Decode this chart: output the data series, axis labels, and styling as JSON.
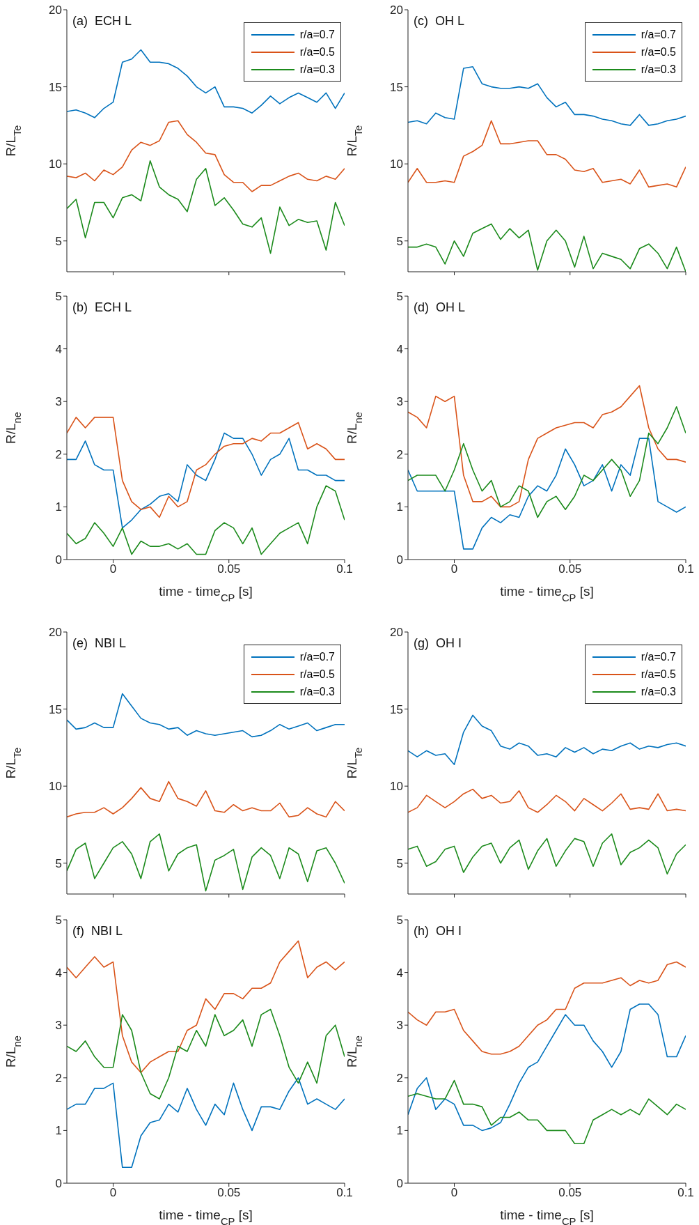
{
  "chart_data": [
    {
      "type": "line",
      "annotations": [
        "(a)  ECH L"
      ],
      "ylabel": "R/L$_{Te}$",
      "xlim": [
        -0.02,
        0.1
      ],
      "xticks": [
        0,
        0.05,
        0.1
      ],
      "ylim": [
        3,
        20
      ],
      "yticks": [
        5,
        10,
        15,
        20
      ],
      "tick_labels": "y",
      "legend": "top right",
      "x": [
        -0.02,
        -0.016,
        -0.012,
        -0.008,
        -0.004,
        0,
        0.004,
        0.008,
        0.012,
        0.016,
        0.02,
        0.024,
        0.028,
        0.032,
        0.036,
        0.04,
        0.044,
        0.048,
        0.052,
        0.056,
        0.06,
        0.064,
        0.068,
        0.072,
        0.076,
        0.08,
        0.084,
        0.088,
        0.092,
        0.096,
        0.1
      ],
      "series": [
        {
          "name": "r/a=0.7",
          "color": "#0072bd",
          "values": [
            13.4,
            13.5,
            13.3,
            13.0,
            13.6,
            14.0,
            16.6,
            16.8,
            17.4,
            16.6,
            16.6,
            16.5,
            16.2,
            15.7,
            15.0,
            14.6,
            15.0,
            13.7,
            13.7,
            13.6,
            13.3,
            13.8,
            14.4,
            13.9,
            14.3,
            14.6,
            14.3,
            14.0,
            14.6,
            13.6,
            14.6
          ]
        },
        {
          "name": "r/a=0.5",
          "color": "#d95319",
          "values": [
            9.2,
            9.1,
            9.4,
            8.9,
            9.6,
            9.3,
            9.8,
            10.9,
            11.4,
            11.2,
            11.5,
            12.7,
            12.8,
            11.9,
            11.4,
            10.7,
            10.6,
            9.3,
            8.8,
            8.8,
            8.2,
            8.6,
            8.6,
            8.9,
            9.2,
            9.4,
            9.0,
            8.9,
            9.2,
            9.0,
            9.7
          ]
        },
        {
          "name": "r/a=0.3",
          "color": "#1b8a1b",
          "values": [
            7.1,
            7.7,
            5.2,
            7.5,
            7.5,
            6.5,
            7.8,
            8.0,
            7.6,
            10.2,
            8.5,
            8.0,
            7.7,
            6.9,
            9.0,
            9.7,
            7.3,
            7.8,
            7.0,
            6.1,
            5.9,
            6.5,
            4.2,
            7.2,
            6.0,
            6.4,
            6.2,
            6.3,
            4.4,
            7.5,
            6.0
          ]
        }
      ]
    },
    {
      "type": "line",
      "annotations": [
        "(c)  OH L"
      ],
      "ylabel": "R/L$_{Te}$",
      "xlim": [
        -0.02,
        0.1
      ],
      "xticks": [
        0,
        0.05,
        0.1
      ],
      "ylim": [
        3,
        20
      ],
      "yticks": [
        5,
        10,
        15,
        20
      ],
      "tick_labels": "y",
      "legend": "top right",
      "x": [
        -0.02,
        -0.016,
        -0.012,
        -0.008,
        -0.004,
        0,
        0.004,
        0.008,
        0.012,
        0.016,
        0.02,
        0.024,
        0.028,
        0.032,
        0.036,
        0.04,
        0.044,
        0.048,
        0.052,
        0.056,
        0.06,
        0.064,
        0.068,
        0.072,
        0.076,
        0.08,
        0.084,
        0.088,
        0.092,
        0.096,
        0.1
      ],
      "series": [
        {
          "name": "r/a=0.7",
          "color": "#0072bd",
          "values": [
            12.7,
            12.8,
            12.6,
            13.3,
            13.0,
            12.9,
            16.2,
            16.3,
            15.2,
            15.0,
            14.9,
            14.9,
            15.0,
            14.9,
            15.2,
            14.3,
            13.7,
            14.0,
            13.2,
            13.2,
            13.1,
            12.9,
            12.8,
            12.6,
            12.5,
            13.2,
            12.5,
            12.6,
            12.8,
            12.9,
            13.1
          ]
        },
        {
          "name": "r/a=0.5",
          "color": "#d95319",
          "values": [
            8.8,
            9.7,
            8.8,
            8.8,
            8.9,
            8.8,
            10.5,
            10.8,
            11.2,
            12.8,
            11.3,
            11.3,
            11.4,
            11.5,
            11.5,
            10.6,
            10.6,
            10.3,
            9.6,
            9.5,
            9.7,
            8.8,
            8.9,
            9.0,
            8.7,
            9.6,
            8.5,
            8.6,
            8.7,
            8.5,
            9.8
          ]
        },
        {
          "name": "r/a=0.3",
          "color": "#1b8a1b",
          "values": [
            4.6,
            4.6,
            4.8,
            4.6,
            3.5,
            5.0,
            4.0,
            5.5,
            5.8,
            6.1,
            5.1,
            5.8,
            5.2,
            5.7,
            3.1,
            5.0,
            5.7,
            5.0,
            3.3,
            5.3,
            3.2,
            4.2,
            4.0,
            3.8,
            3.2,
            4.5,
            4.8,
            4.2,
            3.2,
            4.6,
            3.0
          ]
        }
      ]
    },
    {
      "type": "line",
      "annotations": [
        "(b)  ECH L"
      ],
      "ylabel": "R/L$_{ne}$",
      "xlabel": "time - time$_{CP}$ [s]",
      "xlim": [
        -0.02,
        0.1
      ],
      "xticks": [
        0,
        0.05,
        0.1
      ],
      "ylim": [
        0,
        5
      ],
      "yticks": [
        0,
        1,
        2,
        3,
        4,
        5
      ],
      "x": [
        -0.02,
        -0.016,
        -0.012,
        -0.008,
        -0.004,
        0,
        0.004,
        0.008,
        0.012,
        0.016,
        0.02,
        0.024,
        0.028,
        0.032,
        0.036,
        0.04,
        0.044,
        0.048,
        0.052,
        0.056,
        0.06,
        0.064,
        0.068,
        0.072,
        0.076,
        0.08,
        0.084,
        0.088,
        0.092,
        0.096,
        0.1
      ],
      "series": [
        {
          "color": "#0072bd",
          "values": [
            1.9,
            1.9,
            2.25,
            1.8,
            1.7,
            1.7,
            0.6,
            0.75,
            0.95,
            1.05,
            1.2,
            1.25,
            1.1,
            1.8,
            1.6,
            1.5,
            1.9,
            2.4,
            2.3,
            2.3,
            2.0,
            1.6,
            1.9,
            2.0,
            2.3,
            1.7,
            1.7,
            1.6,
            1.6,
            1.5,
            1.5
          ]
        },
        {
          "color": "#d95319",
          "values": [
            2.4,
            2.7,
            2.5,
            2.7,
            2.7,
            2.7,
            1.5,
            1.1,
            0.95,
            1.0,
            0.8,
            1.2,
            1.0,
            1.1,
            1.7,
            1.8,
            2.0,
            2.15,
            2.2,
            2.2,
            2.3,
            2.25,
            2.4,
            2.4,
            2.5,
            2.6,
            2.1,
            2.2,
            2.1,
            1.9,
            1.9
          ]
        },
        {
          "color": "#1b8a1b",
          "values": [
            0.5,
            0.3,
            0.4,
            0.7,
            0.5,
            0.25,
            0.6,
            0.1,
            0.35,
            0.25,
            0.25,
            0.3,
            0.2,
            0.3,
            0.1,
            0.1,
            0.55,
            0.7,
            0.6,
            0.3,
            0.6,
            0.1,
            0.3,
            0.5,
            0.6,
            0.7,
            0.3,
            1.0,
            1.4,
            1.3,
            0.75
          ]
        }
      ]
    },
    {
      "type": "line",
      "annotations": [
        "(d)  OH L"
      ],
      "ylabel": "R/L$_{ne}$",
      "xlabel": "time - time$_{CP}$ [s]",
      "xlim": [
        -0.02,
        0.1
      ],
      "xticks": [
        0,
        0.05,
        0.1
      ],
      "ylim": [
        0,
        5
      ],
      "yticks": [
        0,
        1,
        2,
        3,
        4,
        5
      ],
      "x": [
        -0.02,
        -0.016,
        -0.012,
        -0.008,
        -0.004,
        0,
        0.004,
        0.008,
        0.012,
        0.016,
        0.02,
        0.024,
        0.028,
        0.032,
        0.036,
        0.04,
        0.044,
        0.048,
        0.052,
        0.056,
        0.06,
        0.064,
        0.068,
        0.072,
        0.076,
        0.08,
        0.084,
        0.088,
        0.092,
        0.096,
        0.1
      ],
      "series": [
        {
          "color": "#0072bd",
          "values": [
            1.7,
            1.3,
            1.3,
            1.3,
            1.3,
            1.3,
            0.2,
            0.2,
            0.6,
            0.8,
            0.7,
            0.85,
            0.8,
            1.2,
            1.4,
            1.3,
            1.6,
            2.1,
            1.8,
            1.4,
            1.5,
            1.8,
            1.3,
            1.8,
            1.6,
            2.3,
            2.3,
            1.1,
            1.0,
            0.9,
            1.0
          ]
        },
        {
          "color": "#d95319",
          "values": [
            2.8,
            2.7,
            2.5,
            3.1,
            3.0,
            3.1,
            1.6,
            1.1,
            1.1,
            1.2,
            1.0,
            1.0,
            1.1,
            1.9,
            2.3,
            2.4,
            2.5,
            2.55,
            2.6,
            2.6,
            2.5,
            2.75,
            2.8,
            2.9,
            3.1,
            3.3,
            2.5,
            2.1,
            1.9,
            1.9,
            1.85
          ]
        },
        {
          "color": "#1b8a1b",
          "values": [
            1.5,
            1.6,
            1.6,
            1.6,
            1.3,
            1.7,
            2.2,
            1.7,
            1.3,
            1.5,
            1.0,
            1.1,
            1.4,
            1.3,
            0.8,
            1.1,
            1.2,
            0.95,
            1.2,
            1.6,
            1.5,
            1.7,
            1.9,
            1.7,
            1.2,
            1.5,
            2.4,
            2.2,
            2.5,
            2.9,
            2.4
          ]
        }
      ]
    },
    {
      "type": "line",
      "annotations": [
        "(e)  NBI L"
      ],
      "ylabel": "R/L$_{Te}$",
      "xlim": [
        -0.02,
        0.1
      ],
      "xticks": [
        0,
        0.05,
        0.1
      ],
      "ylim": [
        3,
        20
      ],
      "yticks": [
        5,
        10,
        15,
        20
      ],
      "tick_labels": "y",
      "legend": "top right",
      "x": [
        -0.02,
        -0.016,
        -0.012,
        -0.008,
        -0.004,
        0,
        0.004,
        0.008,
        0.012,
        0.016,
        0.02,
        0.024,
        0.028,
        0.032,
        0.036,
        0.04,
        0.044,
        0.048,
        0.052,
        0.056,
        0.06,
        0.064,
        0.068,
        0.072,
        0.076,
        0.08,
        0.084,
        0.088,
        0.092,
        0.096,
        0.1
      ],
      "series": [
        {
          "name": "r/a=0.7",
          "color": "#0072bd",
          "values": [
            14.3,
            13.7,
            13.8,
            14.1,
            13.8,
            13.8,
            16.0,
            15.2,
            14.4,
            14.1,
            14.0,
            13.7,
            13.8,
            13.3,
            13.6,
            13.4,
            13.3,
            13.4,
            13.5,
            13.6,
            13.2,
            13.3,
            13.6,
            14.0,
            13.7,
            13.9,
            14.1,
            13.6,
            13.8,
            14.0,
            14.0
          ]
        },
        {
          "name": "r/a=0.5",
          "color": "#d95319",
          "values": [
            8.0,
            8.2,
            8.3,
            8.3,
            8.6,
            8.2,
            8.6,
            9.2,
            9.9,
            9.2,
            9.0,
            10.3,
            9.2,
            9.0,
            8.7,
            9.7,
            8.4,
            8.3,
            8.8,
            8.4,
            8.6,
            8.4,
            8.4,
            8.9,
            8.0,
            8.1,
            8.6,
            8.2,
            8.0,
            9.0,
            8.4
          ]
        },
        {
          "name": "r/a=0.3",
          "color": "#1b8a1b",
          "values": [
            4.5,
            5.9,
            6.3,
            4.0,
            5.0,
            6.0,
            6.4,
            5.6,
            4.0,
            6.4,
            6.9,
            4.5,
            5.6,
            6.0,
            6.2,
            3.2,
            5.2,
            5.5,
            5.9,
            3.3,
            5.4,
            6.0,
            5.5,
            4.0,
            6.0,
            5.6,
            3.8,
            5.8,
            6.0,
            5.0,
            3.7
          ]
        }
      ]
    },
    {
      "type": "line",
      "annotations": [
        "(g)  OH I"
      ],
      "ylabel": "R/L$_{Te}$",
      "xlim": [
        -0.02,
        0.1
      ],
      "xticks": [
        0,
        0.05,
        0.1
      ],
      "ylim": [
        3,
        20
      ],
      "yticks": [
        5,
        10,
        15,
        20
      ],
      "tick_labels": "y",
      "legend": "top right",
      "x": [
        -0.02,
        -0.016,
        -0.012,
        -0.008,
        -0.004,
        0,
        0.004,
        0.008,
        0.012,
        0.016,
        0.02,
        0.024,
        0.028,
        0.032,
        0.036,
        0.04,
        0.044,
        0.048,
        0.052,
        0.056,
        0.06,
        0.064,
        0.068,
        0.072,
        0.076,
        0.08,
        0.084,
        0.088,
        0.092,
        0.096,
        0.1
      ],
      "series": [
        {
          "name": "r/a=0.7",
          "color": "#0072bd",
          "values": [
            12.3,
            11.9,
            12.3,
            12.0,
            12.1,
            11.4,
            13.5,
            14.6,
            13.9,
            13.6,
            12.6,
            12.4,
            12.8,
            12.6,
            12.0,
            12.1,
            11.9,
            12.5,
            12.2,
            12.5,
            12.1,
            12.4,
            12.3,
            12.6,
            12.8,
            12.4,
            12.6,
            12.5,
            12.7,
            12.8,
            12.6
          ]
        },
        {
          "name": "r/a=0.5",
          "color": "#d95319",
          "values": [
            8.3,
            8.6,
            9.4,
            9.0,
            8.6,
            9.0,
            9.5,
            9.8,
            9.2,
            9.4,
            8.9,
            9.0,
            9.7,
            8.6,
            8.3,
            8.8,
            9.4,
            9.0,
            8.4,
            9.2,
            8.8,
            8.4,
            8.9,
            9.5,
            8.5,
            8.6,
            8.5,
            9.5,
            8.4,
            8.5,
            8.4
          ]
        },
        {
          "name": "r/a=0.3",
          "color": "#1b8a1b",
          "values": [
            5.9,
            6.1,
            4.8,
            5.1,
            5.9,
            6.1,
            4.4,
            5.4,
            6.1,
            6.3,
            5.0,
            6.0,
            6.5,
            4.6,
            5.8,
            6.6,
            4.8,
            5.8,
            6.6,
            6.4,
            4.8,
            6.3,
            6.9,
            4.9,
            5.7,
            6.0,
            6.5,
            6.0,
            4.3,
            5.6,
            6.2
          ]
        }
      ]
    },
    {
      "type": "line",
      "annotations": [
        "(f)  NBI L"
      ],
      "ylabel": "R/L$_{ne}$",
      "xlabel": "time - time$_{CP}$ [s]",
      "xlim": [
        -0.02,
        0.1
      ],
      "xticks": [
        0,
        0.05,
        0.1
      ],
      "ylim": [
        0,
        5
      ],
      "yticks": [
        0,
        1,
        2,
        3,
        4,
        5
      ],
      "x": [
        -0.02,
        -0.016,
        -0.012,
        -0.008,
        -0.004,
        0,
        0.004,
        0.008,
        0.012,
        0.016,
        0.02,
        0.024,
        0.028,
        0.032,
        0.036,
        0.04,
        0.044,
        0.048,
        0.052,
        0.056,
        0.06,
        0.064,
        0.068,
        0.072,
        0.076,
        0.08,
        0.084,
        0.088,
        0.092,
        0.096,
        0.1
      ],
      "series": [
        {
          "color": "#0072bd",
          "values": [
            1.4,
            1.5,
            1.5,
            1.8,
            1.8,
            1.9,
            0.3,
            0.3,
            0.9,
            1.15,
            1.2,
            1.5,
            1.35,
            1.8,
            1.4,
            1.1,
            1.5,
            1.3,
            1.9,
            1.4,
            1.0,
            1.45,
            1.45,
            1.4,
            1.75,
            2.0,
            1.5,
            1.6,
            1.5,
            1.4,
            1.6
          ]
        },
        {
          "color": "#d95319",
          "values": [
            4.1,
            3.9,
            4.1,
            4.3,
            4.1,
            4.2,
            2.8,
            2.3,
            2.1,
            2.3,
            2.4,
            2.5,
            2.5,
            2.9,
            3.0,
            3.5,
            3.3,
            3.6,
            3.6,
            3.5,
            3.7,
            3.7,
            3.8,
            4.2,
            4.4,
            4.6,
            3.9,
            4.1,
            4.2,
            4.05,
            4.2
          ]
        },
        {
          "color": "#1b8a1b",
          "values": [
            2.6,
            2.5,
            2.7,
            2.4,
            2.2,
            2.2,
            3.2,
            2.9,
            2.1,
            1.7,
            1.6,
            2.0,
            2.6,
            2.5,
            2.9,
            2.6,
            3.2,
            2.8,
            2.9,
            3.1,
            2.6,
            3.2,
            3.3,
            2.8,
            2.2,
            1.9,
            2.3,
            1.9,
            2.8,
            3.0,
            2.4
          ]
        }
      ]
    },
    {
      "type": "line",
      "annotations": [
        "(h)  OH I"
      ],
      "ylabel": "R/L$_{ne}$",
      "xlabel": "time - time$_{CP}$ [s]",
      "xlim": [
        -0.02,
        0.1
      ],
      "xticks": [
        0,
        0.05,
        0.1
      ],
      "ylim": [
        0,
        5
      ],
      "yticks": [
        0,
        1,
        2,
        3,
        4,
        5
      ],
      "x": [
        -0.02,
        -0.016,
        -0.012,
        -0.008,
        -0.004,
        0,
        0.004,
        0.008,
        0.012,
        0.016,
        0.02,
        0.024,
        0.028,
        0.032,
        0.036,
        0.04,
        0.044,
        0.048,
        0.052,
        0.056,
        0.06,
        0.064,
        0.068,
        0.072,
        0.076,
        0.08,
        0.084,
        0.088,
        0.092,
        0.096,
        0.1
      ],
      "series": [
        {
          "color": "#0072bd",
          "values": [
            1.3,
            1.8,
            2.0,
            1.4,
            1.6,
            1.5,
            1.1,
            1.1,
            1.0,
            1.05,
            1.15,
            1.5,
            1.9,
            2.2,
            2.3,
            2.6,
            2.9,
            3.2,
            3.0,
            3.0,
            2.7,
            2.5,
            2.2,
            2.5,
            3.3,
            3.4,
            3.4,
            3.2,
            2.4,
            2.4,
            2.8
          ]
        },
        {
          "color": "#d95319",
          "values": [
            3.25,
            3.1,
            3.0,
            3.25,
            3.25,
            3.3,
            2.9,
            2.7,
            2.5,
            2.45,
            2.45,
            2.5,
            2.6,
            2.8,
            3.0,
            3.1,
            3.3,
            3.3,
            3.7,
            3.8,
            3.8,
            3.8,
            3.85,
            3.9,
            3.75,
            3.85,
            3.8,
            3.85,
            4.15,
            4.2,
            4.1
          ]
        },
        {
          "color": "#1b8a1b",
          "values": [
            1.65,
            1.7,
            1.65,
            1.6,
            1.6,
            1.95,
            1.5,
            1.5,
            1.45,
            1.1,
            1.25,
            1.25,
            1.35,
            1.2,
            1.2,
            1.0,
            1.0,
            1.0,
            0.75,
            0.75,
            1.2,
            1.3,
            1.4,
            1.3,
            1.4,
            1.3,
            1.6,
            1.45,
            1.3,
            1.5,
            1.4
          ]
        }
      ]
    }
  ]
}
